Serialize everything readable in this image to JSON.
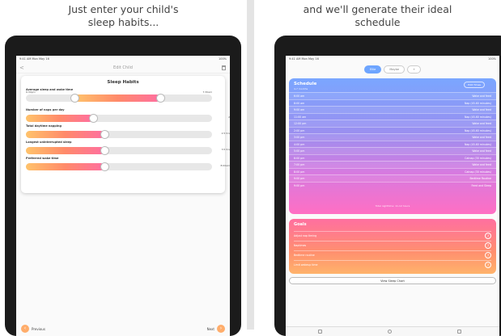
{
  "left": {
    "caption_line1": "Just enter your child's",
    "caption_line2": "sleep habits...",
    "status_time": "9:41 AM  Mon May 16",
    "status_battery": "100%",
    "nav_title": "Edit Child",
    "back_glyph": "<",
    "card_title": "Sleep Habits",
    "sliders": [
      {
        "label": "Average sleep and wake time",
        "start": "6:30pm",
        "end": "7:30am",
        "value": ""
      },
      {
        "label": "Number of naps per day",
        "value": "2"
      },
      {
        "label": "Total daytime napping",
        "value": "2.5 hrs"
      },
      {
        "label": "Longest uninterrupted sleep",
        "value": "3.5 hrs"
      },
      {
        "label": "Preferred wake time",
        "value": "8:00am"
      }
    ],
    "slider_fractions": [
      0.72,
      0.36,
      0.42,
      0.42,
      0.42
    ],
    "slider_start_fraction": 0.26,
    "prev_label": "Previous",
    "next_label": "Next"
  },
  "right": {
    "caption": "and we'll generate their ideal schedule",
    "status_time": "9:41 AM  Mon May 16",
    "status_battery": "100%",
    "tabs": [
      "Ellie",
      "Maybe",
      "+"
    ],
    "schedule_title": "Schedule",
    "schedule_subtitle": "4-7 months",
    "edit_label": "Edit Times",
    "schedule": [
      {
        "time": "6:00 am",
        "event": "Wake and feed"
      },
      {
        "time": "8:00 am",
        "event": "Nap (45-60 minutes)"
      },
      {
        "time": "9:00 am",
        "event": "Wake and feed"
      },
      {
        "time": "11:00 am",
        "event": "Nap (45-60 minutes)"
      },
      {
        "time": "12:00 pm",
        "event": "Wake and feed"
      },
      {
        "time": "2:00 pm",
        "event": "Nap (45-60 minutes)"
      },
      {
        "time": "3:00 pm",
        "event": "Wake and feed"
      },
      {
        "time": "4:00 pm",
        "event": "Nap (45-60 minutes)"
      },
      {
        "time": "5:00 pm",
        "event": "Wake and feed"
      },
      {
        "time": "6:00 pm",
        "event": "Catnap (30 minutes)"
      },
      {
        "time": "7:00 pm",
        "event": "Wake and feed"
      },
      {
        "time": "8:00 pm",
        "event": "Catnap (30 minutes)"
      },
      {
        "time": "9:00 pm",
        "event": "Bedtime Routine"
      },
      {
        "time": "9:00 pm",
        "event": "Feed and Sleep"
      }
    ],
    "schedule_footer": "Total nighttime: 11-12 hours",
    "goals_title": "Goals",
    "goals": [
      "Adjust nap timing",
      "Naptimes",
      "Bedtime routine",
      "Limit wakeup time"
    ],
    "goal_btn": "?",
    "chart_button": "View Sleep Chart"
  }
}
